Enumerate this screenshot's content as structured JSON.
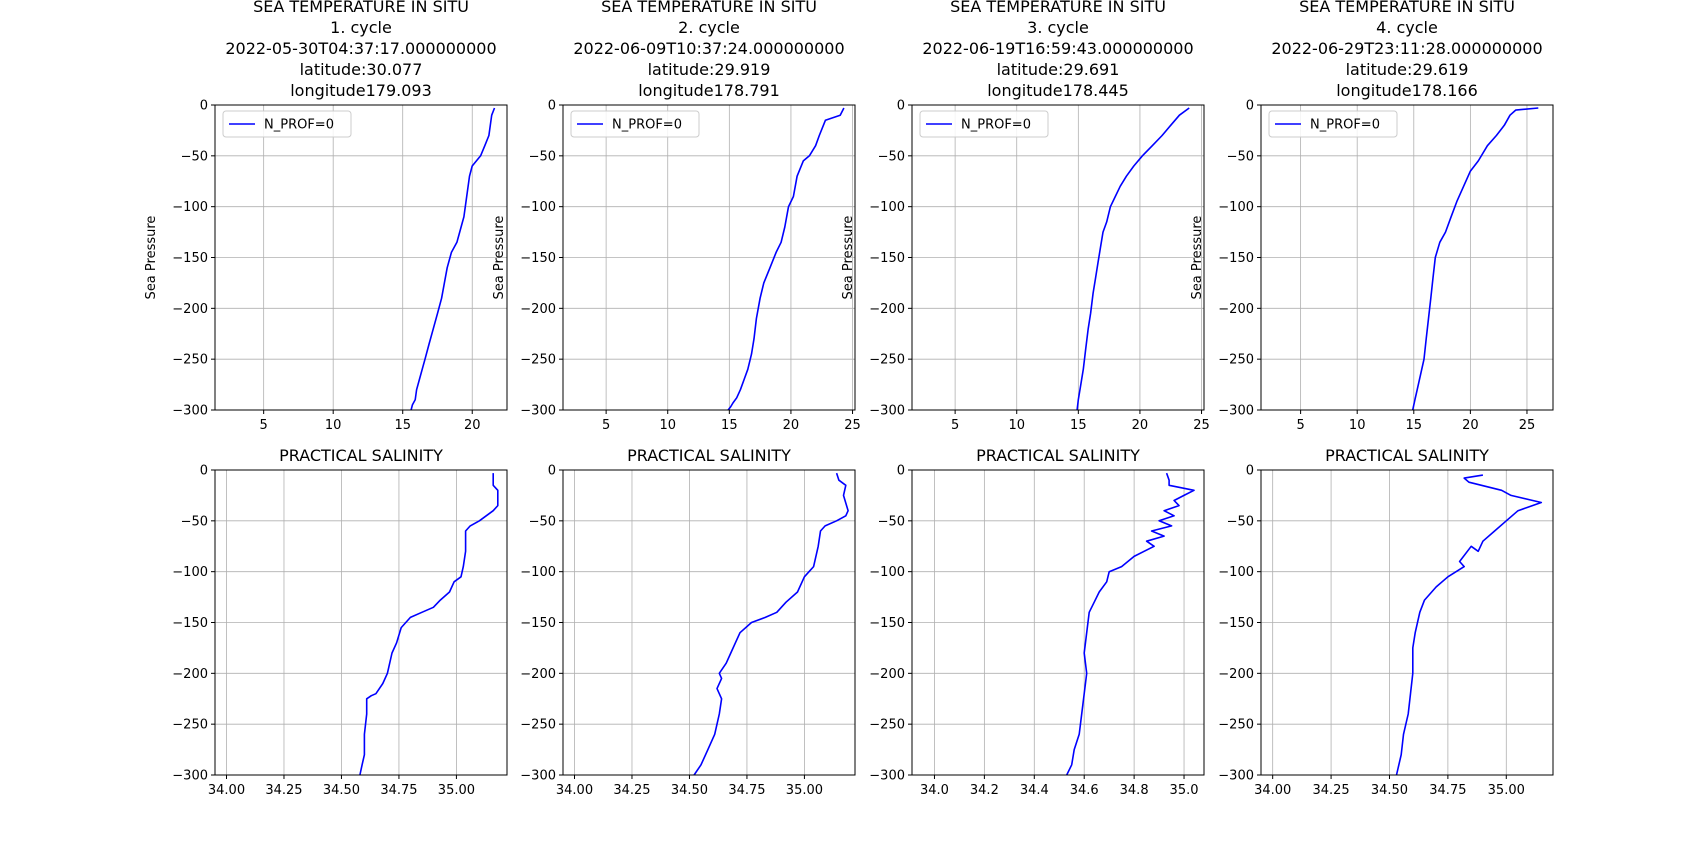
{
  "chart_data": [
    {
      "type": "line",
      "title_lines": [
        "SEA TEMPERATURE IN SITU",
        "1. cycle",
        "2022-05-30T04:37:17.000000000",
        "latitude:30.077",
        "longitude179.093"
      ],
      "ylabel": "Sea Pressure",
      "xlim": [
        1.5,
        22.5
      ],
      "ylim": [
        -300,
        0
      ],
      "xticks": [
        5,
        10,
        15,
        20
      ],
      "xtick_labels": [
        "5",
        "10",
        "15",
        "20"
      ],
      "yticks": [
        0,
        -50,
        -100,
        -150,
        -200,
        -250,
        -300
      ],
      "ytick_labels": [
        "0",
        "−50",
        "−100",
        "−150",
        "−200",
        "−250",
        "−300"
      ],
      "grid": true,
      "legend": {
        "label": "N_PROF=0",
        "placement": "upper-left"
      },
      "color": "#0000ff",
      "series": [
        {
          "name": "N_PROF=0",
          "x": [
            21.6,
            21.4,
            21.3,
            21.2,
            20.9,
            20.6,
            20.3,
            20.0,
            19.8,
            19.6,
            19.4,
            19.2,
            18.9,
            18.5,
            18.2,
            18.0,
            17.8,
            17.5,
            17.2,
            16.9,
            16.6,
            16.4,
            16.2,
            16.0,
            15.9,
            15.7,
            15.6
          ],
          "y": [
            -3,
            -10,
            -20,
            -30,
            -40,
            -50,
            -55,
            -60,
            -70,
            -90,
            -110,
            -120,
            -135,
            -145,
            -160,
            -175,
            -190,
            -205,
            -220,
            -235,
            -250,
            -260,
            -270,
            -280,
            -290,
            -295,
            -300
          ]
        }
      ]
    },
    {
      "type": "line",
      "title_lines": [
        "SEA TEMPERATURE IN SITU",
        "2. cycle",
        "2022-06-09T10:37:24.000000000",
        "latitude:29.919",
        "longitude178.791"
      ],
      "ylabel": "Sea Pressure",
      "xlim": [
        1.5,
        25.2
      ],
      "ylim": [
        -300,
        0
      ],
      "xticks": [
        5,
        10,
        15,
        20,
        25
      ],
      "xtick_labels": [
        "5",
        "10",
        "15",
        "20",
        "25"
      ],
      "yticks": [
        0,
        -50,
        -100,
        -150,
        -200,
        -250,
        -300
      ],
      "ytick_labels": [
        "0",
        "−50",
        "−100",
        "−150",
        "−200",
        "−250",
        "−300"
      ],
      "grid": true,
      "legend": {
        "label": "N_PROF=0",
        "placement": "upper-left"
      },
      "color": "#0000ff",
      "series": [
        {
          "name": "N_PROF=0",
          "x": [
            24.3,
            24.0,
            22.8,
            22.3,
            22.0,
            21.5,
            21.0,
            20.5,
            20.2,
            19.8,
            19.5,
            19.2,
            18.8,
            18.3,
            17.8,
            17.5,
            17.2,
            17.0,
            16.8,
            16.5,
            16.2,
            15.9,
            15.6,
            15.3,
            15.1,
            14.9
          ],
          "y": [
            -3,
            -10,
            -15,
            -30,
            -40,
            -50,
            -55,
            -70,
            -90,
            -100,
            -120,
            -135,
            -145,
            -160,
            -175,
            -190,
            -210,
            -230,
            -245,
            -260,
            -270,
            -280,
            -288,
            -293,
            -297,
            -300
          ]
        }
      ]
    },
    {
      "type": "line",
      "title_lines": [
        "SEA TEMPERATURE IN SITU",
        "3. cycle",
        "2022-06-19T16:59:43.000000000",
        "latitude:29.691",
        "longitude178.445"
      ],
      "ylabel": "Sea Pressure",
      "xlim": [
        1.5,
        25.2
      ],
      "ylim": [
        -300,
        0
      ],
      "xticks": [
        5,
        10,
        15,
        20,
        25
      ],
      "xtick_labels": [
        "5",
        "10",
        "15",
        "20",
        "25"
      ],
      "yticks": [
        0,
        -50,
        -100,
        -150,
        -200,
        -250,
        -300
      ],
      "ytick_labels": [
        "0",
        "−50",
        "−100",
        "−150",
        "−200",
        "−250",
        "−300"
      ],
      "grid": true,
      "legend": {
        "label": "N_PROF=0",
        "placement": "upper-left"
      },
      "color": "#0000ff",
      "series": [
        {
          "name": "N_PROF=0",
          "x": [
            24.0,
            23.2,
            22.5,
            21.8,
            21.0,
            20.2,
            19.5,
            18.9,
            18.4,
            18.0,
            17.6,
            17.3,
            17.0,
            16.8,
            16.6,
            16.4,
            16.2,
            16.0,
            15.8,
            15.6,
            15.4,
            15.2,
            15.0,
            14.9
          ],
          "y": [
            -3,
            -10,
            -20,
            -30,
            -40,
            -50,
            -60,
            -70,
            -80,
            -90,
            -100,
            -115,
            -125,
            -140,
            -155,
            -170,
            -185,
            -205,
            -220,
            -240,
            -260,
            -275,
            -290,
            -300
          ]
        }
      ]
    },
    {
      "type": "line",
      "title_lines": [
        "SEA TEMPERATURE IN SITU",
        "4. cycle",
        "2022-06-29T23:11:28.000000000",
        "latitude:29.619",
        "longitude178.166"
      ],
      "ylabel": "Sea Pressure",
      "xlim": [
        1.5,
        27.3
      ],
      "ylim": [
        -300,
        0
      ],
      "xticks": [
        5,
        10,
        15,
        20,
        25
      ],
      "xtick_labels": [
        "5",
        "10",
        "15",
        "20",
        "25"
      ],
      "yticks": [
        0,
        -50,
        -100,
        -150,
        -200,
        -250,
        -300
      ],
      "ytick_labels": [
        "0",
        "−50",
        "−100",
        "−150",
        "−200",
        "−250",
        "−300"
      ],
      "grid": true,
      "legend": {
        "label": "N_PROF=0",
        "placement": "upper-left"
      },
      "color": "#0000ff",
      "series": [
        {
          "name": "N_PROF=0",
          "x": [
            26.0,
            24.0,
            23.5,
            23.0,
            22.3,
            21.5,
            20.7,
            20.0,
            19.4,
            18.8,
            18.3,
            17.8,
            17.3,
            16.9,
            16.7,
            16.5,
            16.3,
            16.1,
            15.9,
            15.6,
            15.3,
            15.1,
            15.0,
            14.9
          ],
          "y": [
            -3,
            -5,
            -10,
            -20,
            -30,
            -40,
            -55,
            -65,
            -80,
            -95,
            -110,
            -125,
            -135,
            -150,
            -170,
            -190,
            -210,
            -230,
            -250,
            -265,
            -280,
            -290,
            -295,
            -300
          ]
        }
      ]
    },
    {
      "type": "line",
      "title_lines": [
        "PRACTICAL SALINITY"
      ],
      "ylabel": "",
      "xlim": [
        33.95,
        35.22
      ],
      "ylim": [
        -300,
        0
      ],
      "xticks": [
        34.0,
        34.25,
        34.5,
        34.75,
        35.0
      ],
      "xtick_labels": [
        "34.00",
        "34.25",
        "34.50",
        "34.75",
        "35.00"
      ],
      "yticks": [
        0,
        -50,
        -100,
        -150,
        -200,
        -250,
        -300
      ],
      "ytick_labels": [
        "0",
        "−50",
        "−100",
        "−150",
        "−200",
        "−250",
        "−300"
      ],
      "grid": true,
      "legend": null,
      "color": "#0000ff",
      "series": [
        {
          "name": "",
          "x": [
            35.16,
            35.16,
            35.18,
            35.18,
            35.16,
            35.1,
            35.06,
            35.04,
            35.04,
            35.03,
            35.02,
            34.99,
            34.97,
            34.93,
            34.9,
            34.85,
            34.8,
            34.76,
            34.74,
            34.72,
            34.7,
            34.68,
            34.65,
            34.63,
            34.61,
            34.61,
            34.6,
            34.6,
            34.59,
            34.58
          ],
          "y": [
            -3,
            -15,
            -20,
            -35,
            -40,
            -50,
            -55,
            -60,
            -80,
            -95,
            -105,
            -110,
            -120,
            -128,
            -135,
            -140,
            -145,
            -155,
            -170,
            -180,
            -200,
            -210,
            -220,
            -222,
            -225,
            -240,
            -260,
            -280,
            -290,
            -300
          ]
        }
      ]
    },
    {
      "type": "line",
      "title_lines": [
        "PRACTICAL SALINITY"
      ],
      "ylabel": "",
      "xlim": [
        33.95,
        35.22
      ],
      "ylim": [
        -300,
        0
      ],
      "xticks": [
        34.0,
        34.25,
        34.5,
        34.75,
        35.0
      ],
      "xtick_labels": [
        "34.00",
        "34.25",
        "34.50",
        "34.75",
        "35.00"
      ],
      "yticks": [
        0,
        -50,
        -100,
        -150,
        -200,
        -250,
        -300
      ],
      "ytick_labels": [
        "0",
        "−50",
        "−100",
        "−150",
        "−200",
        "−250",
        "−300"
      ],
      "grid": true,
      "legend": null,
      "color": "#0000ff",
      "series": [
        {
          "name": "",
          "x": [
            35.14,
            35.15,
            35.18,
            35.17,
            35.19,
            35.18,
            35.14,
            35.09,
            35.07,
            35.06,
            35.04,
            35.02,
            35.0,
            34.97,
            34.92,
            34.88,
            34.83,
            34.77,
            34.72,
            34.7,
            34.68,
            34.66,
            34.63,
            34.64,
            34.62,
            34.64,
            34.63,
            34.61,
            34.58,
            34.55,
            34.52
          ],
          "y": [
            -3,
            -10,
            -15,
            -25,
            -40,
            -45,
            -50,
            -55,
            -60,
            -75,
            -95,
            -100,
            -105,
            -120,
            -130,
            -140,
            -145,
            -150,
            -160,
            -170,
            -180,
            -190,
            -200,
            -205,
            -215,
            -225,
            -240,
            -260,
            -275,
            -290,
            -300
          ]
        }
      ]
    },
    {
      "type": "line",
      "title_lines": [
        "PRACTICAL SALINITY"
      ],
      "ylabel": "",
      "xlim": [
        33.91,
        35.08
      ],
      "ylim": [
        -300,
        0
      ],
      "xticks": [
        34.0,
        34.2,
        34.4,
        34.6,
        34.8,
        35.0
      ],
      "xtick_labels": [
        "34.0",
        "34.2",
        "34.4",
        "34.6",
        "34.8",
        "35.0"
      ],
      "yticks": [
        0,
        -50,
        -100,
        -150,
        -200,
        -250,
        -300
      ],
      "ytick_labels": [
        "0",
        "−50",
        "−100",
        "−150",
        "−200",
        "−250",
        "−300"
      ],
      "grid": true,
      "legend": null,
      "color": "#0000ff",
      "series": [
        {
          "name": "",
          "x": [
            34.93,
            34.94,
            34.94,
            35.04,
            35.0,
            34.96,
            34.98,
            34.92,
            34.96,
            34.9,
            34.95,
            34.87,
            34.92,
            34.85,
            34.88,
            34.8,
            34.75,
            34.7,
            34.69,
            34.66,
            34.64,
            34.62,
            34.61,
            34.6,
            34.61,
            34.6,
            34.59,
            34.58,
            34.56,
            34.55,
            34.53
          ],
          "y": [
            -3,
            -10,
            -15,
            -20,
            -25,
            -30,
            -35,
            -40,
            -45,
            -50,
            -55,
            -60,
            -65,
            -70,
            -75,
            -85,
            -95,
            -100,
            -110,
            -120,
            -130,
            -140,
            -160,
            -180,
            -200,
            -220,
            -240,
            -260,
            -275,
            -290,
            -300
          ]
        }
      ]
    },
    {
      "type": "line",
      "title_lines": [
        "PRACTICAL SALINITY"
      ],
      "ylabel": "",
      "xlim": [
        33.95,
        35.2
      ],
      "ylim": [
        -300,
        0
      ],
      "xticks": [
        34.0,
        34.25,
        34.5,
        34.75,
        35.0
      ],
      "xtick_labels": [
        "34.00",
        "34.25",
        "34.50",
        "34.75",
        "35.00"
      ],
      "yticks": [
        0,
        -50,
        -100,
        -150,
        -200,
        -250,
        -300
      ],
      "ytick_labels": [
        "0",
        "−50",
        "−100",
        "−150",
        "−200",
        "−250",
        "−300"
      ],
      "grid": true,
      "legend": null,
      "color": "#0000ff",
      "series": [
        {
          "name": "",
          "x": [
            34.9,
            34.82,
            34.84,
            34.98,
            35.02,
            35.15,
            35.05,
            35.0,
            34.95,
            34.9,
            34.88,
            34.85,
            34.8,
            34.82,
            34.75,
            34.7,
            34.65,
            34.63,
            34.61,
            34.6,
            34.6,
            34.59,
            34.58,
            34.56,
            34.55,
            34.53
          ],
          "y": [
            -5,
            -8,
            -12,
            -20,
            -25,
            -32,
            -40,
            -50,
            -60,
            -70,
            -80,
            -75,
            -90,
            -95,
            -105,
            -115,
            -128,
            -140,
            -160,
            -175,
            -200,
            -220,
            -240,
            -260,
            -280,
            -300
          ]
        }
      ]
    }
  ]
}
